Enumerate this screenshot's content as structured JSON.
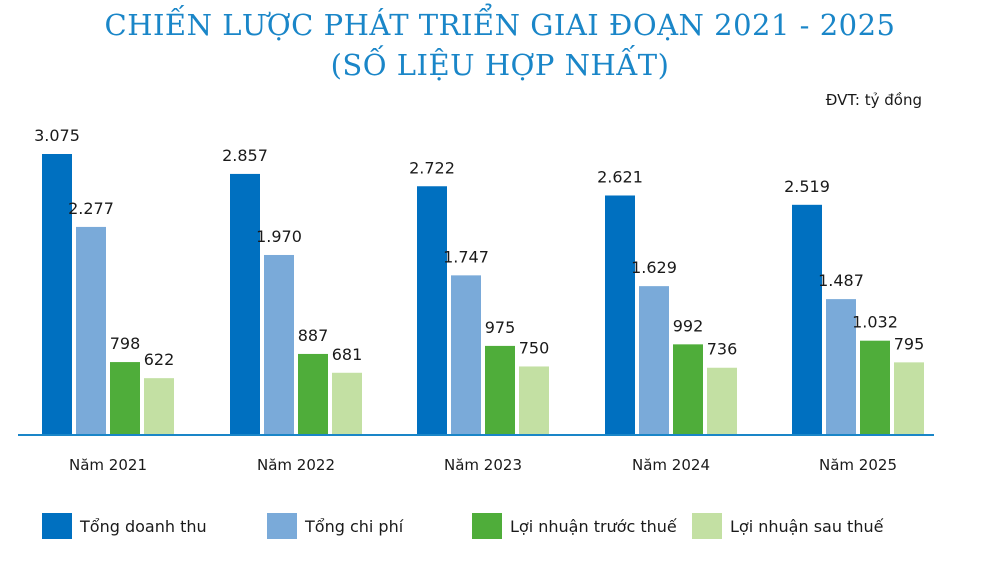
{
  "title_line1": "CHIẾN LƯỢC PHÁT TRIỂN GIAI ĐOẠN 2021 - 2025",
  "title_line2": "(SỐ LIỆU HỢP NHẤT)",
  "unit_label": "ĐVT: tỷ đồng",
  "chart_data": {
    "type": "bar",
    "title": "CHIẾN LƯỢC PHÁT TRIỂN GIAI ĐOẠN 2021 - 2025 (SỐ LIỆU HỢP NHẤT)",
    "unit": "ĐVT: tỷ đồng",
    "categories": [
      "Năm 2021",
      "Năm 2022",
      "Năm 2023",
      "Năm 2024",
      "Năm 2025"
    ],
    "series": [
      {
        "name": "Tổng doanh thu",
        "color": "#0070c0",
        "values": [
          3075,
          2857,
          2722,
          2621,
          2519
        ],
        "labels": [
          "3.075",
          "2.857",
          "2.722",
          "2.621",
          "2.519"
        ]
      },
      {
        "name": "Tổng chi phí",
        "color": "#7aaad9",
        "values": [
          2277,
          1970,
          1747,
          1629,
          1487
        ],
        "labels": [
          "2.277",
          "1.970",
          "1.747",
          "1.629",
          "1.487"
        ]
      },
      {
        "name": "Lợi nhuận trước thuế",
        "color": "#4fad3a",
        "values": [
          798,
          887,
          975,
          992,
          1032
        ],
        "labels": [
          "798",
          "887",
          "975",
          "992",
          "1.032"
        ]
      },
      {
        "name": "Lợi nhuận sau thuế",
        "color": "#c3e0a3",
        "values": [
          622,
          681,
          750,
          736,
          795
        ],
        "labels": [
          "622",
          "681",
          "750",
          "736",
          "795"
        ]
      }
    ],
    "ylim": [
      0,
      3075
    ],
    "grid": false,
    "legend_position": "bottom",
    "axis_color": "#1a86c8"
  }
}
